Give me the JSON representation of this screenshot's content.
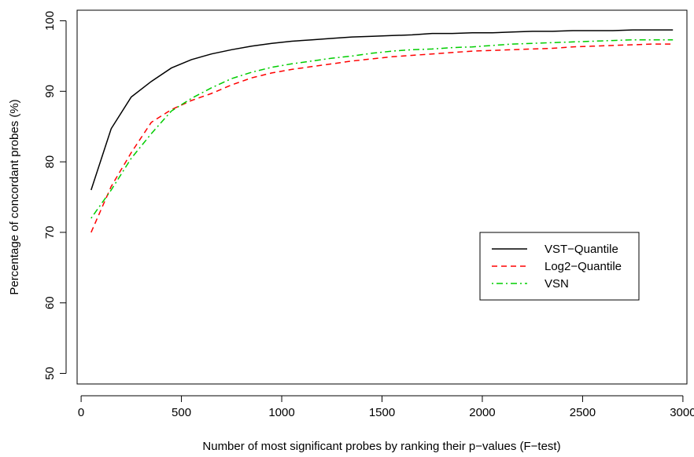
{
  "chart_data": {
    "type": "line",
    "title": "",
    "xlabel": "Number of most significant probes by ranking their p−values (F−test)",
    "ylabel": "Percentage of concordant probes (%)",
    "xlim": [
      -20,
      3020
    ],
    "ylim": [
      48.5,
      101.5
    ],
    "xticks": [
      0,
      500,
      1000,
      1500,
      2000,
      2500,
      3000
    ],
    "xtick_labels": [
      "0",
      "500",
      "1000",
      "1500",
      "2000",
      "2500",
      "3000"
    ],
    "yticks": [
      50,
      60,
      70,
      80,
      90,
      100
    ],
    "ytick_labels": [
      "50",
      "60",
      "70",
      "80",
      "90",
      "100"
    ],
    "grid": false,
    "legend_position": "right",
    "x": [
      50,
      150,
      250,
      350,
      450,
      550,
      650,
      750,
      850,
      950,
      1050,
      1150,
      1250,
      1350,
      1450,
      1550,
      1650,
      1750,
      1850,
      1950,
      2050,
      2150,
      2250,
      2350,
      2450,
      2550,
      2650,
      2750,
      2850,
      2950
    ],
    "series": [
      {
        "name": "VST−Quantile",
        "color": "#000000",
        "dash": "solid",
        "values": [
          76.0,
          84.7,
          89.2,
          91.4,
          93.3,
          94.5,
          95.3,
          95.9,
          96.4,
          96.8,
          97.1,
          97.3,
          97.5,
          97.7,
          97.8,
          97.9,
          98.0,
          98.2,
          98.2,
          98.3,
          98.3,
          98.4,
          98.5,
          98.5,
          98.6,
          98.6,
          98.6,
          98.7,
          98.7,
          98.7
        ]
      },
      {
        "name": "Log2−Quantile",
        "color": "#ff0000",
        "dash": "dashed",
        "values": [
          70.0,
          76.5,
          81.3,
          85.6,
          87.4,
          88.7,
          89.7,
          90.9,
          91.9,
          92.6,
          93.1,
          93.5,
          93.9,
          94.3,
          94.6,
          94.9,
          95.1,
          95.3,
          95.5,
          95.7,
          95.8,
          95.9,
          96.0,
          96.1,
          96.3,
          96.4,
          96.5,
          96.6,
          96.7,
          96.7
        ]
      },
      {
        "name": "VSN",
        "color": "#00cd00",
        "dash": "dotdash",
        "values": [
          72.0,
          76.0,
          80.5,
          84.0,
          87.2,
          89.0,
          90.5,
          91.8,
          92.7,
          93.4,
          93.9,
          94.3,
          94.7,
          95.0,
          95.4,
          95.7,
          95.9,
          96.0,
          96.2,
          96.3,
          96.5,
          96.7,
          96.8,
          96.9,
          97.0,
          97.1,
          97.2,
          97.3,
          97.3,
          97.3
        ]
      }
    ]
  }
}
